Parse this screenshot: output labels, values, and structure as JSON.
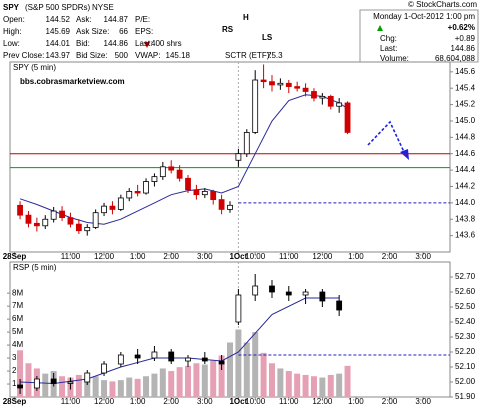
{
  "header": {
    "symbol": "SPY",
    "name": "(S&P 500 SPDRs)",
    "exchange": "NYSE",
    "copyright": "© StockCharts.com",
    "col1": [
      {
        "label": "Open:",
        "value": 144.52
      },
      {
        "label": "High:",
        "value": 145.69
      },
      {
        "label": "Low:",
        "value": 144.01
      },
      {
        "label": "Prev Close:",
        "value": 143.97
      }
    ],
    "col2": [
      {
        "label": "Ask:",
        "value": 144.87
      },
      {
        "label": "Ask Size:",
        "value": 66
      },
      {
        "label": "Bid:",
        "value": 144.86
      },
      {
        "label": "Bid Size:",
        "value": 500
      }
    ],
    "col3": [
      {
        "label": "P/E:"
      },
      {
        "label": "EPS:"
      },
      {
        "label": "Last:",
        "value": "400 shrs"
      },
      {
        "label": "VWAP:",
        "value": 145.18
      }
    ],
    "sctr": {
      "label": "SCTR (ETF):",
      "value": 75.3
    },
    "date": "Monday  1-Oct-2012 1:00 pm",
    "change_pct": "+0.62%",
    "right": [
      {
        "label": "Chg:",
        "value": "+0.89"
      },
      {
        "label": "Last:",
        "value": 144.86
      },
      {
        "label": "Volume:",
        "value": "68,604,088"
      }
    ],
    "annotations": [
      "RS",
      "H",
      "LS"
    ],
    "site": "bbs.cobrasmarketview.com"
  },
  "chart_data": [
    {
      "type": "candlestick",
      "title": "SPY (5 min)",
      "up_color": "#000000",
      "down_color": "#d00000",
      "xlim": [
        -3.6,
        153.6
      ],
      "xticks": [
        {
          "value": -2,
          "label": "28Sep"
        },
        {
          "value": 18,
          "label": "11:00"
        },
        {
          "value": 30,
          "label": "12:00"
        },
        {
          "value": 42,
          "label": "1:00"
        },
        {
          "value": 54,
          "label": "2:00"
        },
        {
          "value": 66,
          "label": "3:00"
        },
        {
          "value": 78,
          "label": "1Oct"
        },
        {
          "value": 84,
          "label": "10:00"
        },
        {
          "value": 96,
          "label": "11:00"
        },
        {
          "value": 108,
          "label": "12:00"
        },
        {
          "value": 120,
          "label": "1:00"
        },
        {
          "value": 132,
          "label": "2:00"
        },
        {
          "value": 144,
          "label": "3:00"
        }
      ],
      "ylim": [
        143.4,
        145.72
      ],
      "yticks": [
        143.6,
        143.8,
        {
          "value": 144,
          "label": "144.0"
        },
        144.2,
        144.4,
        144.6,
        144.8,
        {
          "value": 145,
          "label": "145.0"
        },
        145.2,
        145.4,
        145.6
      ],
      "x": [
        0,
        3,
        6,
        9,
        12,
        15,
        18,
        21,
        24,
        27,
        30,
        33,
        36,
        39,
        42,
        45,
        48,
        51,
        54,
        57,
        60,
        63,
        66,
        69,
        72,
        75,
        78,
        81,
        84,
        87,
        90,
        93,
        96,
        99,
        102,
        105,
        108,
        111,
        114,
        117
      ],
      "candles": [
        [
          143.97,
          144.02,
          143.8,
          143.85
        ],
        [
          143.85,
          143.9,
          143.7,
          143.75
        ],
        [
          143.75,
          143.82,
          143.65,
          143.72
        ],
        [
          143.72,
          143.85,
          143.68,
          143.8
        ],
        [
          143.8,
          143.95,
          143.76,
          143.9
        ],
        [
          143.9,
          143.96,
          143.78,
          143.82
        ],
        [
          143.82,
          143.88,
          143.7,
          143.74
        ],
        [
          143.74,
          143.8,
          143.62,
          143.66
        ],
        [
          143.66,
          143.74,
          143.6,
          143.7
        ],
        [
          143.7,
          143.92,
          143.68,
          143.88
        ],
        [
          143.88,
          144,
          143.84,
          143.96
        ],
        [
          143.96,
          144.02,
          143.86,
          143.92
        ],
        [
          143.92,
          144.1,
          143.9,
          144.06
        ],
        [
          144.06,
          144.18,
          144.02,
          144.14
        ],
        [
          144.14,
          144.22,
          144.08,
          144.12
        ],
        [
          144.12,
          144.3,
          144.1,
          144.26
        ],
        [
          144.26,
          144.36,
          144.2,
          144.32
        ],
        [
          144.32,
          144.5,
          144.28,
          144.44
        ],
        [
          144.44,
          144.52,
          144.36,
          144.4
        ],
        [
          144.4,
          144.46,
          144.26,
          144.3
        ],
        [
          144.3,
          144.34,
          144.12,
          144.16
        ],
        [
          144.16,
          144.22,
          144.04,
          144.1
        ],
        [
          144.1,
          144.18,
          144.06,
          144.14
        ],
        [
          144.14,
          144.16,
          143.98,
          144.04
        ],
        [
          144.04,
          144.1,
          143.86,
          143.92
        ],
        [
          143.92,
          144.02,
          143.88,
          143.97
        ],
        [
          144.52,
          144.66,
          144.44,
          144.6
        ],
        [
          144.6,
          144.9,
          144.56,
          144.86
        ],
        [
          144.86,
          145.62,
          144.84,
          145.5
        ],
        [
          145.5,
          145.69,
          145.4,
          145.48
        ],
        [
          145.48,
          145.56,
          145.36,
          145.44
        ],
        [
          145.44,
          145.52,
          145.38,
          145.46
        ],
        [
          145.46,
          145.5,
          145.34,
          145.42
        ],
        [
          145.42,
          145.48,
          145.36,
          145.4
        ],
        [
          145.4,
          145.46,
          145.3,
          145.36
        ],
        [
          145.36,
          145.4,
          145.24,
          145.28
        ],
        [
          145.28,
          145.34,
          145.2,
          145.3
        ],
        [
          145.3,
          145.32,
          145.14,
          145.18
        ],
        [
          145.18,
          145.28,
          145.1,
          145.22
        ],
        [
          145.22,
          145.24,
          144.84,
          144.86
        ]
      ],
      "series": [
        {
          "color": "#2a2a9a",
          "x": [
            0,
            6,
            12,
            18,
            24,
            30,
            36,
            42,
            48,
            54,
            60,
            66,
            72,
            78,
            84,
            90,
            96,
            102,
            108,
            114,
            117
          ],
          "values": [
            144.05,
            143.98,
            143.9,
            143.82,
            143.76,
            143.74,
            143.8,
            143.9,
            144,
            144.1,
            144.15,
            144.17,
            144.12,
            144.2,
            144.6,
            145,
            145.25,
            145.32,
            145.3,
            145.22,
            145.15
          ]
        }
      ],
      "hlines": [
        {
          "value": 144.6,
          "color": "#c00000"
        },
        {
          "value": 144.43,
          "color": "#00a000"
        },
        {
          "value": 144,
          "color": "#2020c0",
          "dashed": true,
          "from": 78
        }
      ]
    },
    {
      "type": "candlestick",
      "title": "RSP (5 min)",
      "up_color": "#000000",
      "down_color": "#000000",
      "xlim": [
        -3.6,
        153.6
      ],
      "xticks": [
        {
          "value": -2,
          "label": "28Sep"
        },
        {
          "value": 18,
          "label": "11:00"
        },
        {
          "value": 30,
          "label": "12:00"
        },
        {
          "value": 42,
          "label": "1:00"
        },
        {
          "value": 54,
          "label": "2:00"
        },
        {
          "value": 66,
          "label": "3:00"
        },
        {
          "value": 78,
          "label": "1Oct"
        },
        {
          "value": 84,
          "label": "10:00"
        },
        {
          "value": 96,
          "label": "11:00"
        },
        {
          "value": 108,
          "label": "12:00"
        },
        {
          "value": 120,
          "label": "1:00"
        },
        {
          "value": 132,
          "label": "2:00"
        },
        {
          "value": 144,
          "label": "3:00"
        }
      ],
      "ylim": [
        51.9,
        52.8
      ],
      "yticks": [
        {
          "value": 51.9,
          "label": "51.90"
        },
        {
          "value": 52,
          "label": "52.00"
        },
        {
          "value": 52.1,
          "label": "52.10"
        },
        {
          "value": 52.2,
          "label": "52.20"
        },
        {
          "value": 52.3,
          "label": "52.30"
        },
        {
          "value": 52.4,
          "label": "52.40"
        },
        {
          "value": 52.5,
          "label": "52.50"
        },
        {
          "value": 52.6,
          "label": "52.60"
        },
        {
          "value": 52.7,
          "label": "52.70"
        }
      ],
      "y2lim": [
        0,
        10400000
      ],
      "y2ticks": [
        {
          "value": 1000000,
          "label": "1M"
        },
        {
          "value": 2000000,
          "label": "2M"
        },
        {
          "value": 3000000,
          "label": "3M"
        },
        {
          "value": 4000000,
          "label": "4M"
        },
        {
          "value": 5000000,
          "label": "5M"
        },
        {
          "value": 6000000,
          "label": "6M"
        },
        {
          "value": 7000000,
          "label": "7M"
        },
        {
          "value": 8000000,
          "label": "8M"
        }
      ],
      "x": [
        0,
        6,
        12,
        18,
        24,
        30,
        36,
        42,
        48,
        54,
        60,
        66,
        72,
        78,
        84,
        90,
        96,
        102,
        108,
        114
      ],
      "candles": [
        [
          51.98,
          52.02,
          51.92,
          51.96
        ],
        [
          51.96,
          52.04,
          51.94,
          52.02
        ],
        [
          52.02,
          52.06,
          51.97,
          51.99
        ],
        [
          51.99,
          52.03,
          51.95,
          52
        ],
        [
          52,
          52.08,
          51.98,
          52.06
        ],
        [
          52.06,
          52.14,
          52.04,
          52.12
        ],
        [
          52.12,
          52.2,
          52.1,
          52.18
        ],
        [
          52.18,
          52.22,
          52.12,
          52.16
        ],
        [
          52.16,
          52.24,
          52.14,
          52.2
        ],
        [
          52.2,
          52.22,
          52.12,
          52.14
        ],
        [
          52.14,
          52.18,
          52.1,
          52.16
        ],
        [
          52.16,
          52.2,
          52.12,
          52.14
        ],
        [
          52.14,
          52.18,
          52.08,
          52.12
        ],
        [
          52.4,
          52.62,
          52.38,
          52.58
        ],
        [
          52.58,
          52.72,
          52.54,
          52.64
        ],
        [
          52.64,
          52.68,
          52.56,
          52.6
        ],
        [
          52.6,
          52.64,
          52.54,
          52.58
        ],
        [
          52.58,
          52.62,
          52.52,
          52.6
        ],
        [
          52.6,
          52.62,
          52.5,
          52.54
        ],
        [
          52.54,
          52.58,
          52.44,
          52.48
        ]
      ],
      "volume": {
        "axis": "y2",
        "up_color": "#b4b4b4",
        "down_color": "#e6a0b4",
        "x": [
          0,
          3,
          6,
          9,
          12,
          15,
          18,
          21,
          24,
          27,
          30,
          33,
          36,
          39,
          42,
          45,
          48,
          51,
          54,
          57,
          60,
          63,
          66,
          69,
          72,
          75,
          78,
          81,
          84,
          87,
          90,
          93,
          96,
          99,
          102,
          105,
          108,
          111,
          114,
          117
        ],
        "values": [
          3600000,
          2600000,
          2200000,
          1800000,
          2000000,
          1600000,
          1500000,
          1700000,
          1400000,
          1600000,
          1300000,
          1200000,
          1300000,
          1500000,
          1400000,
          1600000,
          1800000,
          2200000,
          2000000,
          2300000,
          2400000,
          2600000,
          2500000,
          2800000,
          3200000,
          4200000,
          5200000,
          4200000,
          5000000,
          3400000,
          2600000,
          2200000,
          2000000,
          1800000,
          1700000,
          1600000,
          1500000,
          1700000,
          1800000,
          2400000
        ]
      },
      "series": [
        {
          "color": "#2a2a9a",
          "x": [
            0,
            12,
            24,
            36,
            48,
            60,
            72,
            78,
            90,
            102,
            114
          ],
          "values": [
            52,
            51.99,
            52.02,
            52.1,
            52.16,
            52.16,
            52.14,
            52.2,
            52.45,
            52.56,
            52.56
          ]
        }
      ],
      "hlines": [
        {
          "value": 52.18,
          "color": "#2020c0",
          "dashed": true,
          "from": 78
        }
      ]
    }
  ]
}
